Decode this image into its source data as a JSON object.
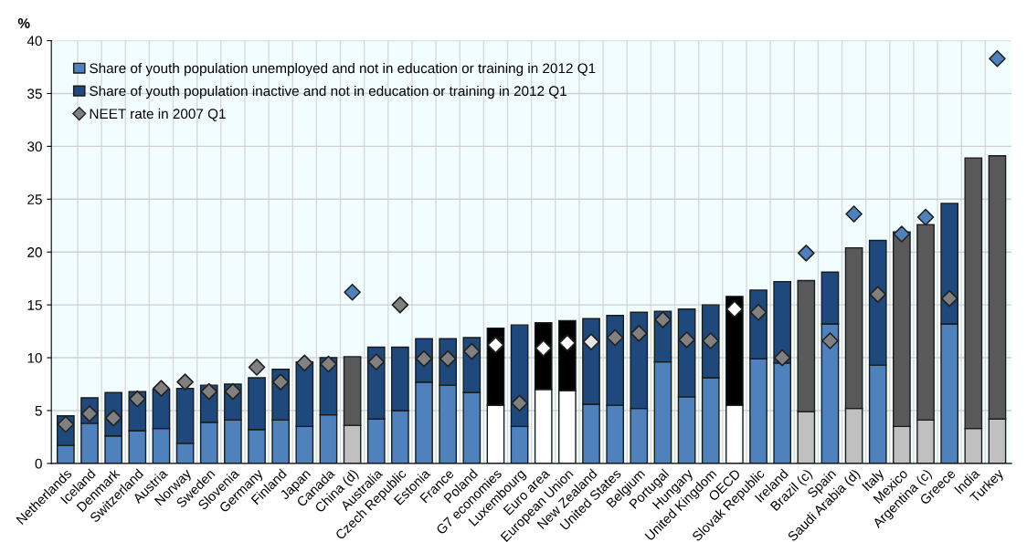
{
  "chart_data": {
    "type": "bar",
    "stacked": true,
    "ylabel": "%",
    "categories": [
      "Netherlands",
      "Iceland",
      "Denmark",
      "Switzerland",
      "Austria",
      "Norway",
      "Sweden",
      "Slovenia",
      "Germany",
      "Finland",
      "Japan",
      "Canada",
      "China (d)",
      "Australia",
      "Czech Republic",
      "Estonia",
      "France",
      "Poland",
      "G7 economies",
      "Luxembourg",
      "Euro area",
      "European Union",
      "New Zealand",
      "United States",
      "Belgium",
      "Portugal",
      "Hungary",
      "United Kingdom",
      "OECD",
      "Slovak Republic",
      "Ireland",
      "Brazil (c)",
      "Spain",
      "Saudi Arabia (d)",
      "Italy",
      "Mexico",
      "Argentina (c)",
      "Greece",
      "India",
      "Turkey"
    ],
    "series": [
      {
        "name": "Share of youth population unemployed and not in education or training in 2012 Q1",
        "color": "#4f81bd",
        "values": [
          1.7,
          3.8,
          2.6,
          3.1,
          3.3,
          1.9,
          3.9,
          4.1,
          3.2,
          4.1,
          3.5,
          4.6,
          3.6,
          4.2,
          5.0,
          7.7,
          7.4,
          6.7,
          5.5,
          3.5,
          7.0,
          6.9,
          5.6,
          5.5,
          5.2,
          9.6,
          6.3,
          8.1,
          5.5,
          9.9,
          9.5,
          4.9,
          13.2,
          5.2,
          9.3,
          3.5,
          4.1,
          13.2,
          3.3,
          4.2
        ],
        "colors": [
          "#4f81bd",
          "#4f81bd",
          "#4f81bd",
          "#4f81bd",
          "#4f81bd",
          "#4f81bd",
          "#4f81bd",
          "#4f81bd",
          "#4f81bd",
          "#4f81bd",
          "#4f81bd",
          "#4f81bd",
          "#c0c0c0",
          "#4f81bd",
          "#4f81bd",
          "#4f81bd",
          "#4f81bd",
          "#4f81bd",
          "#ffffff",
          "#4f81bd",
          "#ffffff",
          "#ffffff",
          "#4f81bd",
          "#4f81bd",
          "#4f81bd",
          "#4f81bd",
          "#4f81bd",
          "#4f81bd",
          "#ffffff",
          "#4f81bd",
          "#4f81bd",
          "#c0c0c0",
          "#4f81bd",
          "#c0c0c0",
          "#4f81bd",
          "#c0c0c0",
          "#c0c0c0",
          "#4f81bd",
          "#c0c0c0",
          "#c0c0c0"
        ]
      },
      {
        "name": "Share of youth population inactive and not in education or training in 2012 Q1",
        "color": "#1f497d",
        "values": [
          2.8,
          2.4,
          4.1,
          3.7,
          3.7,
          5.2,
          3.5,
          3.4,
          4.9,
          4.8,
          6.1,
          5.4,
          6.5,
          6.8,
          6.0,
          4.1,
          4.4,
          5.2,
          7.3,
          9.6,
          6.3,
          6.6,
          8.1,
          8.5,
          9.1,
          4.8,
          8.3,
          6.9,
          10.3,
          6.5,
          7.7,
          12.4,
          4.9,
          15.2,
          11.8,
          18.4,
          18.5,
          11.4,
          25.6,
          24.9
        ],
        "colors": [
          "#1f497d",
          "#1f497d",
          "#1f497d",
          "#1f497d",
          "#1f497d",
          "#1f497d",
          "#1f497d",
          "#1f497d",
          "#1f497d",
          "#1f497d",
          "#1f497d",
          "#1f497d",
          "#595959",
          "#1f497d",
          "#1f497d",
          "#1f497d",
          "#1f497d",
          "#1f497d",
          "#000000",
          "#1f497d",
          "#000000",
          "#000000",
          "#1f497d",
          "#1f497d",
          "#1f497d",
          "#1f497d",
          "#1f497d",
          "#1f497d",
          "#000000",
          "#1f497d",
          "#1f497d",
          "#595959",
          "#1f497d",
          "#595959",
          "#1f497d",
          "#595959",
          "#595959",
          "#1f497d",
          "#595959",
          "#595959"
        ]
      },
      {
        "name": "NEET rate in 2007 Q1",
        "type": "scatter",
        "marker": "diamond",
        "color": "#808080",
        "values": [
          3.7,
          4.7,
          4.3,
          6.1,
          7.1,
          7.7,
          6.8,
          6.8,
          9.1,
          7.7,
          9.5,
          9.4,
          16.2,
          9.6,
          15.0,
          9.9,
          9.9,
          10.6,
          11.2,
          5.7,
          10.9,
          11.4,
          11.5,
          11.9,
          12.3,
          13.6,
          11.7,
          11.6,
          14.6,
          14.3,
          10.0,
          19.9,
          11.6,
          23.6,
          16.0,
          21.7,
          23.3,
          15.6,
          null,
          38.3
        ],
        "colors": [
          "#808080",
          "#808080",
          "#808080",
          "#808080",
          "#808080",
          "#808080",
          "#808080",
          "#808080",
          "#808080",
          "#808080",
          "#808080",
          "#808080",
          "#4f81bd",
          "#808080",
          "#808080",
          "#808080",
          "#808080",
          "#808080",
          "#ffffff",
          "#808080",
          "#ffffff",
          "#ffffff",
          "#e6e6e6",
          "#808080",
          "#808080",
          "#808080",
          "#808080",
          "#808080",
          "#ffffff",
          "#808080",
          "#808080",
          "#4f81bd",
          "#808080",
          "#4f81bd",
          "#808080",
          "#4f81bd",
          "#4f81bd",
          "#808080",
          "#4f81bd",
          "#4f81bd"
        ]
      }
    ],
    "ylim": [
      0,
      40
    ],
    "yticks": [
      0,
      5,
      10,
      15,
      20,
      25,
      30,
      35,
      40
    ],
    "grid": true,
    "legend": "top left"
  }
}
